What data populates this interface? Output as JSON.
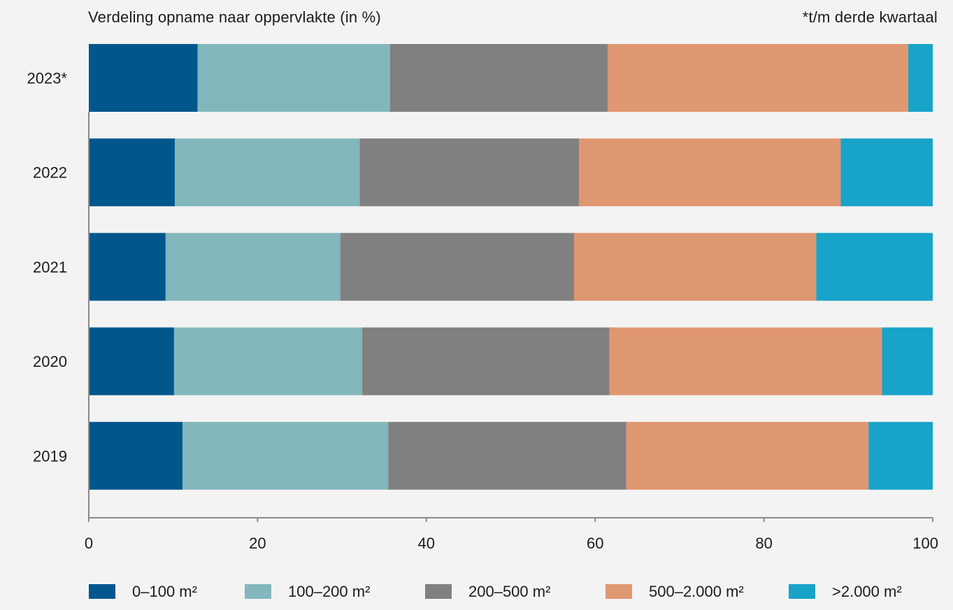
{
  "chart_data": {
    "type": "bar",
    "orientation": "horizontal",
    "stacked": true,
    "title": "Verdeling opname naar oppervlakte (in %)",
    "note": "*t/m derde kwartaal",
    "categories": [
      "2023*",
      "2022",
      "2021",
      "2020",
      "2019"
    ],
    "series": [
      {
        "name": "0–100 m²",
        "color": "#01578c",
        "values": [
          12.9,
          10.2,
          9.1,
          10.1,
          11.1
        ]
      },
      {
        "name": "100–200 m²",
        "color": "#82b7bc",
        "values": [
          22.8,
          21.9,
          20.7,
          22.3,
          24.4
        ]
      },
      {
        "name": "200–500 m²",
        "color": "#808080",
        "values": [
          25.8,
          26.0,
          27.7,
          29.3,
          28.2
        ]
      },
      {
        "name": "500–2.000 m²",
        "color": "#df9771",
        "values": [
          35.6,
          31.0,
          28.7,
          32.3,
          28.7
        ]
      },
      {
        "name": ">2.000 m²",
        "color": "#18a3c8",
        "values": [
          2.9,
          10.9,
          13.8,
          6.0,
          7.6
        ]
      }
    ],
    "xlim": [
      0,
      100
    ],
    "xticks": [
      "0",
      "20",
      "40",
      "60",
      "80",
      "100"
    ],
    "grid": false,
    "legend_position": "bottom"
  }
}
